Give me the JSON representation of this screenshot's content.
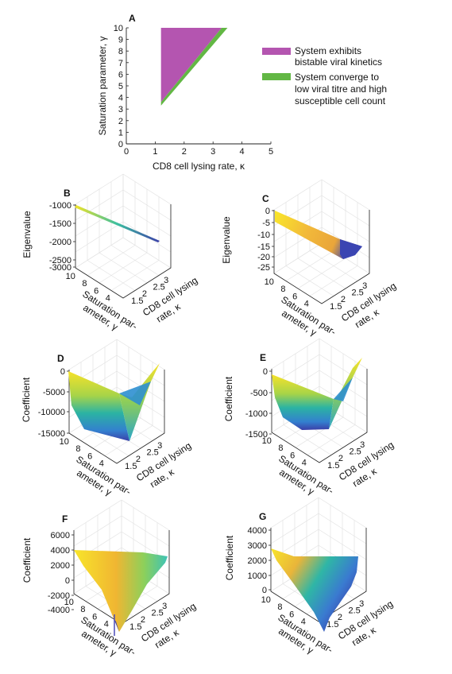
{
  "panels": [
    {
      "letter": "A",
      "type": "area",
      "xlabel": "CD8 cell lysing rate, κ",
      "ylabel": "Saturation parameter, γ",
      "xticks": [
        "0",
        "1",
        "2",
        "3",
        "4",
        "5"
      ],
      "yticks": [
        "0",
        "1",
        "2",
        "3",
        "4",
        "5",
        "6",
        "7",
        "8",
        "9",
        "10"
      ],
      "xlim": [
        0,
        5
      ],
      "ylim": [
        0,
        10
      ],
      "legend": [
        {
          "label_lines": [
            "System exhibits",
            "bistable viral kinetics"
          ],
          "color": "#b455b0"
        },
        {
          "label_lines": [
            "System converge to",
            "low viral titre and high",
            "susceptible cell count"
          ],
          "color": "#62b744"
        }
      ]
    },
    {
      "letter": "B",
      "type": "surface3d",
      "zlabel": "Eigenvalue",
      "zticks": [
        "-1000",
        "-1500",
        "-2000",
        "-2500",
        "-3000"
      ],
      "ylabel_lines": [
        "Saturation par-",
        "ameter, γ"
      ],
      "yticks": [
        "10",
        "8",
        "6",
        "4"
      ],
      "xlabel_lines": [
        "CD8 cell lysing",
        "rate, κ"
      ],
      "xticks": [
        "1.5",
        "2",
        "2.5",
        "3"
      ]
    },
    {
      "letter": "C",
      "type": "surface3d",
      "zlabel": "Eigenvalue",
      "zticks": [
        "0",
        "-5",
        "-10",
        "-15",
        "-20",
        "-25"
      ],
      "ylabel_lines": [
        "Saturation par-",
        "ameter, γ"
      ],
      "yticks": [
        "10",
        "8",
        "6",
        "4"
      ],
      "xlabel_lines": [
        "CD8 cell lysing",
        "rate, κ"
      ],
      "xticks": [
        "1.5",
        "2",
        "2.5",
        "3"
      ]
    },
    {
      "letter": "D",
      "type": "surface3d",
      "zlabel": "Coefficient",
      "zticks": [
        "0",
        "-5000",
        "-10000",
        "-15000"
      ],
      "ylabel_lines": [
        "Saturation par-",
        "ameter, γ"
      ],
      "yticks": [
        "10",
        "8",
        "6",
        "4"
      ],
      "xlabel_lines": [
        "CD8 cell lysing",
        "rate, κ"
      ],
      "xticks": [
        "1.5",
        "2",
        "2.5",
        "3"
      ]
    },
    {
      "letter": "E",
      "type": "surface3d",
      "zlabel": "Coefficient",
      "zticks": [
        "0",
        "-500",
        "-1000",
        "-1500"
      ],
      "ylabel_lines": [
        "Saturation par-",
        "ameter, γ"
      ],
      "yticks": [
        "10",
        "8",
        "6",
        "4"
      ],
      "xlabel_lines": [
        "CD8 cell lysing",
        "rate, κ"
      ],
      "xticks": [
        "1.5",
        "2",
        "2.5",
        "3"
      ]
    },
    {
      "letter": "F",
      "type": "surface3d",
      "zlabel": "Coefficient",
      "zticks": [
        "6000",
        "4000",
        "2000",
        "0",
        "-2000",
        "-4000"
      ],
      "ylabel_lines": [
        "Saturation par-",
        "ameter, γ"
      ],
      "yticks": [
        "10",
        "8",
        "6",
        "4"
      ],
      "xlabel_lines": [
        "CD8 cell lysing",
        "rate, κ"
      ],
      "xticks": [
        "1.5",
        "2",
        "2.5",
        "3"
      ]
    },
    {
      "letter": "G",
      "type": "surface3d",
      "zlabel": "Coefficient",
      "zticks": [
        "4000",
        "3000",
        "2000",
        "1000",
        "0"
      ],
      "ylabel_lines": [
        "Saturation par-",
        "ameter, γ"
      ],
      "yticks": [
        "10",
        "8",
        "6",
        "4"
      ],
      "xlabel_lines": [
        "CD8 cell lysing",
        "rate, κ"
      ],
      "xticks": [
        "1.5",
        "2",
        "2.5",
        "3"
      ]
    }
  ],
  "chart_data": [
    {
      "type": "area",
      "title": "",
      "xlabel": "CD8 cell lysing rate, κ",
      "ylabel": "Saturation parameter, γ",
      "xlim": [
        0,
        5
      ],
      "ylim": [
        0,
        10
      ],
      "grid": false,
      "legend_position": "right",
      "series": [
        {
          "name": "System exhibits bistable viral kinetics",
          "color": "#b455b0",
          "polygon": [
            [
              1.2,
              10.0
            ],
            [
              3.3,
              10.0
            ],
            [
              1.2,
              3.6
            ]
          ]
        },
        {
          "name": "System converge to low viral titre and high susceptible cell count",
          "color": "#62b744",
          "polygon": [
            [
              1.2,
              3.6
            ],
            [
              3.3,
              10.0
            ],
            [
              3.5,
              10.0
            ],
            [
              1.2,
              3.3
            ]
          ]
        }
      ]
    },
    {
      "type": "surface",
      "zlabel": "Eigenvalue",
      "xlabel": "CD8 cell lysing rate, κ",
      "ylabel": "Saturation parameter, γ",
      "xlim": [
        1.2,
        3.5
      ],
      "ylim": [
        3,
        10
      ],
      "zlim": [
        -3000,
        -1000
      ],
      "z_range_shown": [
        -2100,
        -1000
      ]
    },
    {
      "type": "surface",
      "zlabel": "Eigenvalue",
      "xlabel": "CD8 cell lysing rate, κ",
      "ylabel": "Saturation parameter, γ",
      "xlim": [
        1.2,
        3.5
      ],
      "ylim": [
        3,
        10
      ],
      "zlim": [
        -25,
        0
      ],
      "z_range_shown": [
        -19,
        0
      ]
    },
    {
      "type": "surface",
      "zlabel": "Coefficient",
      "xlabel": "CD8 cell lysing rate, κ",
      "ylabel": "Saturation parameter, γ",
      "xlim": [
        1.2,
        3.5
      ],
      "ylim": [
        3,
        10
      ],
      "zlim": [
        -15000,
        0
      ],
      "z_range_shown": [
        -15000,
        0
      ]
    },
    {
      "type": "surface",
      "zlabel": "Coefficient",
      "xlabel": "CD8 cell lysing rate, κ",
      "ylabel": "Saturation parameter, γ",
      "xlim": [
        1.2,
        3.5
      ],
      "ylim": [
        3,
        10
      ],
      "zlim": [
        -1500,
        0
      ],
      "z_range_shown": [
        -1700,
        0
      ]
    },
    {
      "type": "surface",
      "zlabel": "Coefficient",
      "xlabel": "CD8 cell lysing rate, κ",
      "ylabel": "Saturation parameter, γ",
      "xlim": [
        1.2,
        3.5
      ],
      "ylim": [
        3,
        10
      ],
      "zlim": [
        -4000,
        6000
      ],
      "z_range_shown": [
        -5000,
        4200
      ]
    },
    {
      "type": "surface",
      "zlabel": "Coefficient",
      "xlabel": "CD8 cell lysing rate, κ",
      "ylabel": "Saturation parameter, γ",
      "xlim": [
        1.2,
        3.5
      ],
      "ylim": [
        3,
        10
      ],
      "zlim": [
        0,
        4000
      ],
      "z_range_shown": [
        -500,
        4300
      ]
    }
  ]
}
